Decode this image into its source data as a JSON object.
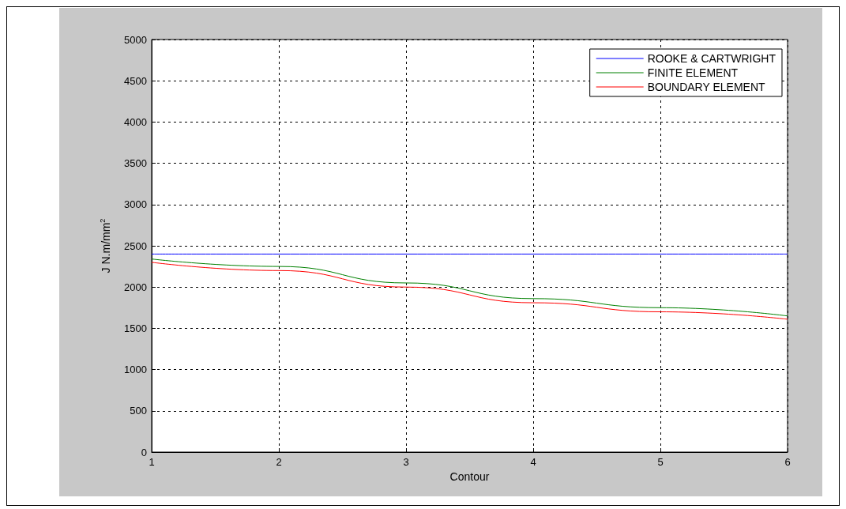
{
  "chart_data": {
    "type": "line",
    "xlabel": "Contour",
    "ylabel": "J N.m/mm$^{2}$",
    "x": [
      1,
      2,
      3,
      4,
      5,
      6
    ],
    "series": [
      {
        "name": "ROOKE & CARTWRIGHT",
        "color": "#0000ff",
        "values": [
          2400,
          2400,
          2400,
          2400,
          2400,
          2400
        ]
      },
      {
        "name": "FINITE ELEMENT",
        "color": "#008000",
        "values": [
          2340,
          2250,
          2050,
          1860,
          1750,
          1650
        ]
      },
      {
        "name": "BOUNDARY ELEMENT",
        "color": "#ff0000",
        "values": [
          2300,
          2200,
          2000,
          1810,
          1700,
          1610
        ]
      }
    ],
    "xlim": [
      1,
      6
    ],
    "xticks": [
      1,
      2,
      3,
      4,
      5,
      6
    ],
    "ylim": [
      0,
      5000
    ],
    "yticks": [
      0,
      500,
      1000,
      1500,
      2000,
      2500,
      3000,
      3500,
      4000,
      4500,
      5000
    ],
    "grid": true,
    "legend": "top right",
    "marker": "none",
    "line_style": "solid"
  }
}
